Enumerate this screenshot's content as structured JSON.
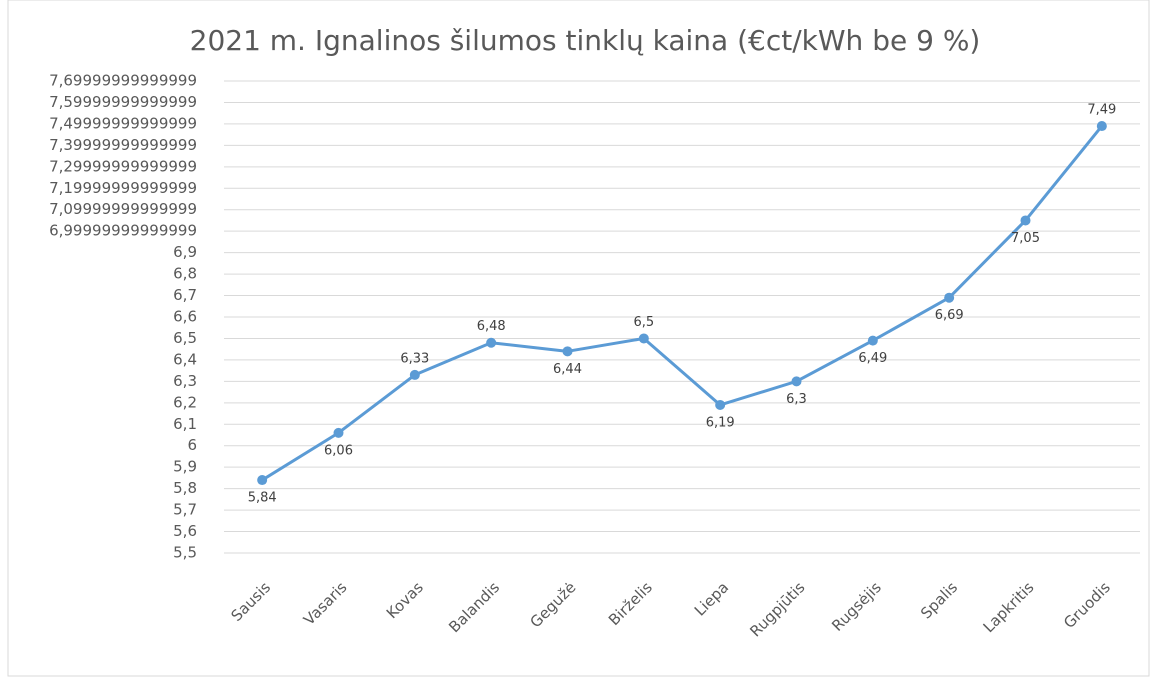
{
  "chart_data": {
    "type": "line",
    "title": "2021 m. Ignalinos šilumos tinklų kaina (€ct/kWh be 9 %)",
    "categories": [
      "Sausis",
      "Vasaris",
      "Kovas",
      "Balandis",
      "Gegužė",
      "Birželis",
      "Liepa",
      "Rugpjūtis",
      "Rugsėjis",
      "Spalis",
      "Lapkritis",
      "Gruodis"
    ],
    "series": [
      {
        "color": "#5b9bd5",
        "values": [
          5.84,
          6.06,
          6.33,
          6.48,
          6.44,
          6.5,
          6.19,
          6.3,
          6.49,
          6.69,
          7.05,
          7.49
        ],
        "value_labels": [
          "5,84",
          "6,06",
          "6,33",
          "6,48",
          "6,44",
          "6,5",
          "6,19",
          "6,3",
          "6,49",
          "6,69",
          "7,05",
          "7,49"
        ]
      }
    ],
    "ylim": [
      5.5,
      7.69999999999999
    ],
    "yticks": [
      {
        "value": 5.5,
        "label": "5,5"
      },
      {
        "value": 5.6,
        "label": "5,6"
      },
      {
        "value": 5.7,
        "label": "5,7"
      },
      {
        "value": 5.8,
        "label": "5,8"
      },
      {
        "value": 5.9,
        "label": "5,9"
      },
      6,
      {
        "value": 6.1,
        "label": "6,1"
      },
      {
        "value": 6.2,
        "label": "6,2"
      },
      {
        "value": 6.3,
        "label": "6,3"
      },
      {
        "value": 6.4,
        "label": "6,4"
      },
      {
        "value": 6.5,
        "label": "6,5"
      },
      {
        "value": 6.6,
        "label": "6,6"
      },
      {
        "value": 6.7,
        "label": "6,7"
      },
      {
        "value": 6.8,
        "label": "6,8"
      },
      {
        "value": 6.9,
        "label": "6,9"
      },
      {
        "value": 6.99999999999999,
        "label": "6,99999999999999"
      },
      {
        "value": 7.09999999999999,
        "label": "7,09999999999999"
      },
      {
        "value": 7.19999999999999,
        "label": "7,19999999999999"
      },
      {
        "value": 7.29999999999999,
        "label": "7,29999999999999"
      },
      {
        "value": 7.39999999999999,
        "label": "7,39999999999999"
      },
      {
        "value": 7.49999999999999,
        "label": "7,49999999999999"
      },
      {
        "value": 7.59999999999999,
        "label": "7,59999999999999"
      },
      {
        "value": 7.69999999999999,
        "label": "7,69999999999999"
      }
    ],
    "grid": true
  }
}
